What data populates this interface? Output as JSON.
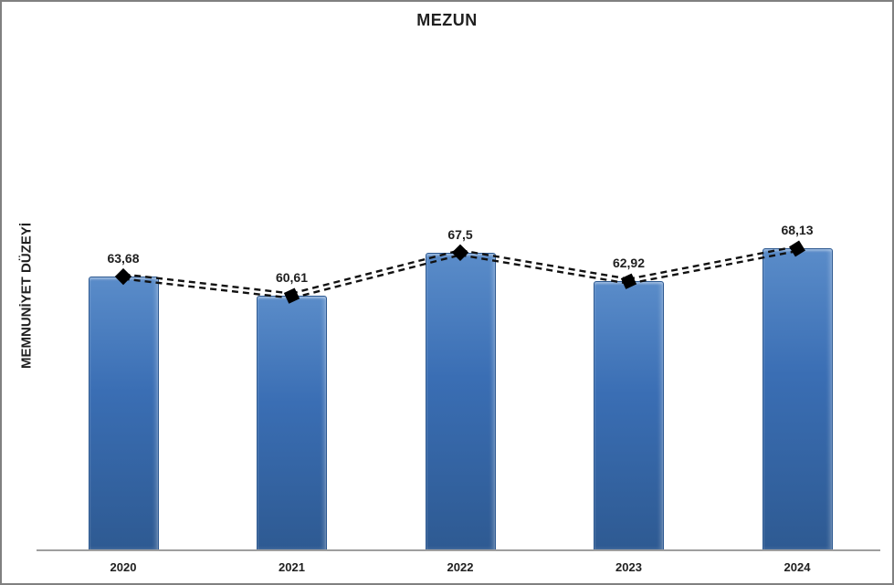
{
  "chart_data": {
    "type": "bar",
    "title": "MEZUN",
    "xlabel": "",
    "ylabel": "MEMNUNİYET DÜZEYİ",
    "categories": [
      "2020",
      "2021",
      "2022",
      "2023",
      "2024"
    ],
    "series": [
      {
        "type": "bar",
        "values": [
          63.68,
          60.61,
          67.5,
          62.92,
          68.13
        ]
      },
      {
        "type": "line",
        "values": [
          63.68,
          60.61,
          67.5,
          62.92,
          68.13
        ],
        "line_style": "double-dashed",
        "marker_shape": "diamond"
      }
    ],
    "data_labels": [
      "63,68",
      "60,61",
      "67,5",
      "62,92",
      "68,13"
    ],
    "ylim": [
      20,
      80
    ],
    "grid": false,
    "legend": "none",
    "marker_rotations_deg": [
      45,
      65,
      45,
      65,
      58
    ],
    "colors": {
      "bar_fill": "#3a6eb4",
      "bar_fill_light": "#5a8cc9",
      "bar_fill_dark": "#2e5a92",
      "bar_border": "#2c5890",
      "line": "#111111",
      "marker": "#000000",
      "text": "#1f1f1f",
      "axis_line": "#9e9e9e",
      "frame_border": "#808080"
    }
  }
}
